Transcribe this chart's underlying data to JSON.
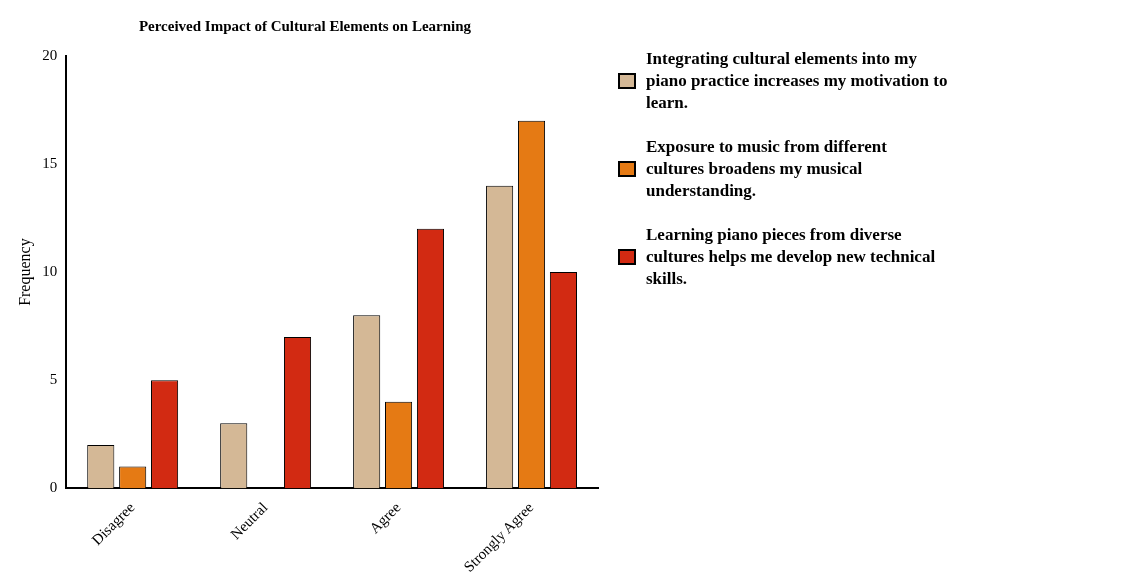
{
  "chart_data": {
    "type": "bar",
    "title": "Perceived Impact of Cultural Elements on Learning",
    "ylabel": "Frequency",
    "categories": [
      "Disagree",
      "Neutral",
      "Agree",
      "Strongly Agree"
    ],
    "series": [
      {
        "name": "Integrating cultural elements into my piano practice increases my motivation to learn.",
        "color": "#d4b896",
        "values": [
          2,
          3,
          8,
          14
        ]
      },
      {
        "name": "Exposure to music from different cultures broadens my musical understanding.",
        "color": "#e57a14",
        "values": [
          1,
          0,
          4,
          17
        ]
      },
      {
        "name": "Learning piano pieces from diverse cultures helps me develop new technical skills.",
        "color": "#d22a12",
        "values": [
          5,
          7,
          12,
          10
        ]
      }
    ],
    "ylim": [
      0,
      20
    ],
    "yticks": [
      0,
      5,
      10,
      15,
      20
    ],
    "grid": false,
    "legend": "right"
  }
}
